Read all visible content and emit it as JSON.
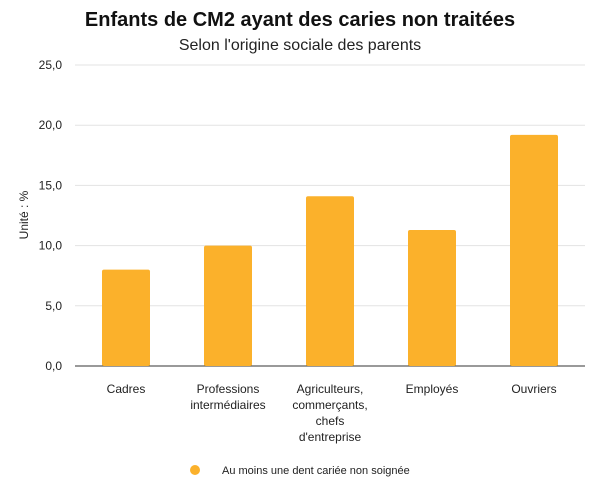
{
  "chart_data": {
    "type": "bar",
    "title": "Enfants de CM2 ayant des caries non traitées",
    "subtitle": "Selon l'origine sociale des parents",
    "ylabel": "Unité : %",
    "xlabel": "",
    "ylim": [
      0,
      25
    ],
    "yticks": [
      "0,0",
      "5,0",
      "10,0",
      "15,0",
      "20,0",
      "25,0"
    ],
    "categories": [
      [
        "Cadres"
      ],
      [
        "Professions",
        "intermédiaires"
      ],
      [
        "Agriculteurs,",
        "commerçants,",
        "chefs",
        "d'entreprise"
      ],
      [
        "Employés"
      ],
      [
        "Ouvriers"
      ]
    ],
    "series": [
      {
        "name": "Au moins une dent cariée non soignée",
        "values": [
          8.0,
          10.0,
          14.1,
          11.3,
          19.2
        ]
      }
    ],
    "colors": {
      "bar": "#FBB12B",
      "grid": "#e3e3e3",
      "axis": "#333333"
    },
    "grid": true,
    "legend_position": "bottom"
  }
}
